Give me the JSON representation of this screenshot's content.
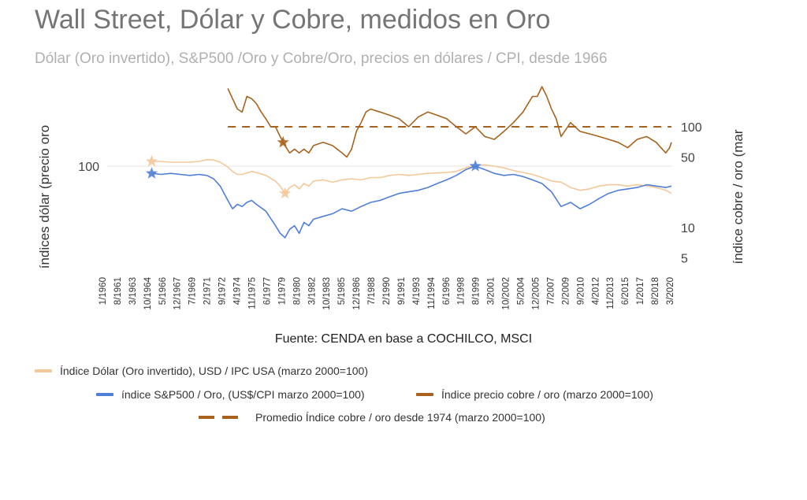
{
  "title": "Wall Street, Dólar y Cobre, medidos en Oro",
  "subtitle": "Dólar (Oro invertido),  S&P500 /Oro y Cobre/Oro, precios en dólares / CPI, desde 1966",
  "source": "Fuente: CENDA en base a COCHILCO, MSCI",
  "legend": [
    {
      "label": "Índice Dólar (Oro invertido), USD / IPC USA (marzo 2000=100)",
      "color": "#f4c89b",
      "style": "solid"
    },
    {
      "label": "índice S&P500 / Oro, (US$/CPI marzo 2000=100)",
      "color": "#4f7fd9",
      "style": "solid"
    },
    {
      "label": "Índice precio cobre / oro (marzo 2000=100)",
      "color": "#a8621d",
      "style": "solid"
    },
    {
      "label": "Promedio Índice cobre / oro desde 1974 (marzo 2000=100)",
      "color": "#a8621d",
      "style": "dashed"
    }
  ],
  "chart_data": {
    "type": "line",
    "title": "Wall Street, Dólar y Cobre, medidos en Oro",
    "ylabel_left": "índices dólar (precio oro",
    "ylabel_right": "índice cobre / oro (mar",
    "y_left_scale": "log",
    "y_right_scale": "log",
    "y_left_ticks": [
      100
    ],
    "y_right_ticks": [
      5,
      10,
      50,
      100
    ],
    "x_tick_labels": [
      "1/1960",
      "8/1961",
      "3/1963",
      "10/1964",
      "5/1966",
      "12/1967",
      "7/1969",
      "2/1971",
      "9/1972",
      "4/1974",
      "11/1975",
      "6/1977",
      "1/1979",
      "8/1980",
      "3/1982",
      "10/1983",
      "5/1985",
      "12/1986",
      "7/1988",
      "2/1990",
      "9/1991",
      "4/1993",
      "11/1994",
      "6/1996",
      "1/1998",
      "8/1999",
      "3/2001",
      "10/2002",
      "5/2004",
      "12/2005",
      "7/2007",
      "2/2009",
      "9/2010",
      "4/2012",
      "11/2013",
      "6/2015",
      "1/2017",
      "8/2018",
      "3/2020"
    ],
    "legend_position": "bottom",
    "grid": false,
    "series": [
      {
        "name": "Índice Dólar (Oro invertido), USD / IPC USA (marzo 2000=100)",
        "axis": "left",
        "color": "#f4c89b",
        "x": [
          1966.0,
          1967.0,
          1968.0,
          1969.0,
          1970.0,
          1971.0,
          1971.8,
          1972.5,
          1973.2,
          1974.0,
          1974.5,
          1975.0,
          1975.5,
          1976.0,
          1976.5,
          1977.0,
          1978.0,
          1979.0,
          1979.5,
          1980.0,
          1980.5,
          1981.0,
          1981.5,
          1982.0,
          1982.5,
          1983.0,
          1984.0,
          1985.0,
          1986.0,
          1987.0,
          1988.0,
          1989.0,
          1990.0,
          1991.0,
          1992.0,
          1993.0,
          1994.0,
          1995.0,
          1996.0,
          1997.0,
          1998.0,
          1999.0,
          2000.0,
          2001.0,
          2002.0,
          2003.0,
          2004.0,
          2005.0,
          2006.0,
          2007.0,
          2008.0,
          2009.0,
          2010.0,
          2011.0,
          2012.0,
          2013.0,
          2014.0,
          2015.0,
          2016.0,
          2017.0,
          2018.0,
          2019.0,
          2020.0,
          2020.6
        ],
        "values": [
          112,
          112,
          110,
          110,
          110,
          112,
          117,
          116,
          110,
          98,
          88,
          82,
          82,
          85,
          88,
          86,
          80,
          70,
          62,
          52,
          60,
          64,
          58,
          66,
          62,
          70,
          72,
          68,
          72,
          74,
          72,
          76,
          76,
          80,
          82,
          80,
          82,
          84,
          85,
          86,
          88,
          96,
          102,
          103,
          100,
          96,
          90,
          86,
          82,
          76,
          70,
          68,
          60,
          56,
          58,
          62,
          64,
          64,
          62,
          64,
          62,
          60,
          56,
          52
        ],
        "markers": [
          {
            "x": 1966.0,
            "y": 112
          },
          {
            "x": 1980.0,
            "y": 52
          }
        ]
      },
      {
        "name": "índice S&P500 / Oro, (US$/CPI marzo 2000=100)",
        "axis": "left",
        "color": "#4f7fd9",
        "x": [
          1966.0,
          1967.0,
          1968.0,
          1969.0,
          1970.0,
          1971.0,
          1971.8,
          1972.5,
          1973.2,
          1974.0,
          1974.5,
          1975.0,
          1975.5,
          1976.0,
          1976.5,
          1977.0,
          1978.0,
          1979.0,
          1979.5,
          1980.0,
          1980.5,
          1981.0,
          1981.5,
          1982.0,
          1982.5,
          1983.0,
          1984.0,
          1985.0,
          1986.0,
          1987.0,
          1988.0,
          1989.0,
          1990.0,
          1991.0,
          1992.0,
          1993.0,
          1994.0,
          1995.0,
          1996.0,
          1997.0,
          1998.0,
          1999.0,
          2000.0,
          2001.0,
          2002.0,
          2003.0,
          2004.0,
          2005.0,
          2006.0,
          2007.0,
          2008.0,
          2009.0,
          2010.0,
          2011.0,
          2012.0,
          2013.0,
          2014.0,
          2015.0,
          2016.0,
          2017.0,
          2018.0,
          2019.0,
          2020.0,
          2020.6
        ],
        "values": [
          84,
          82,
          84,
          82,
          80,
          82,
          80,
          74,
          62,
          44,
          36,
          40,
          38,
          42,
          44,
          40,
          34,
          24,
          20,
          18,
          22,
          24,
          20,
          26,
          24,
          28,
          30,
          32,
          36,
          34,
          38,
          42,
          44,
          48,
          52,
          54,
          56,
          60,
          66,
          72,
          80,
          92,
          100,
          92,
          84,
          80,
          82,
          78,
          72,
          66,
          54,
          38,
          42,
          36,
          40,
          46,
          52,
          56,
          58,
          60,
          64,
          62,
          60,
          62
        ],
        "markers": [
          {
            "x": 1966.0,
            "y": 84
          },
          {
            "x": 2000.0,
            "y": 100
          }
        ]
      },
      {
        "name": "Índice precio cobre / oro (marzo 2000=100)",
        "axis": "right",
        "color": "#a8621d",
        "x": [
          1974.0,
          1974.5,
          1975.0,
          1975.5,
          1976.0,
          1976.5,
          1977.0,
          1977.5,
          1978.0,
          1978.5,
          1979.0,
          1979.5,
          1980.0,
          1980.5,
          1981.0,
          1981.5,
          1982.0,
          1982.5,
          1983.0,
          1984.0,
          1985.0,
          1986.0,
          1986.5,
          1987.0,
          1987.5,
          1988.0,
          1988.5,
          1989.0,
          1990.0,
          1991.0,
          1992.0,
          1993.0,
          1994.0,
          1995.0,
          1996.0,
          1997.0,
          1998.0,
          1999.0,
          2000.0,
          2001.0,
          2002.0,
          2003.0,
          2004.0,
          2005.0,
          2006.0,
          2006.5,
          2007.0,
          2007.5,
          2008.0,
          2008.5,
          2009.0,
          2010.0,
          2011.0,
          2012.0,
          2013.0,
          2014.0,
          2015.0,
          2016.0,
          2017.0,
          2018.0,
          2019.0,
          2019.5,
          2020.0,
          2020.4,
          2020.6
        ],
        "values": [
          240,
          190,
          150,
          140,
          200,
          190,
          170,
          140,
          120,
          100,
          100,
          80,
          65,
          55,
          60,
          55,
          60,
          55,
          65,
          70,
          65,
          55,
          50,
          60,
          90,
          110,
          140,
          150,
          140,
          130,
          120,
          100,
          125,
          140,
          130,
          120,
          100,
          85,
          100,
          80,
          75,
          90,
          110,
          140,
          200,
          200,
          250,
          200,
          150,
          120,
          80,
          110,
          90,
          85,
          80,
          75,
          70,
          62,
          75,
          80,
          70,
          62,
          55,
          62,
          70
        ],
        "markers": [
          {
            "x": 1979.8,
            "y": 70
          }
        ]
      },
      {
        "name": "Promedio Índice cobre / oro desde 1974 (marzo 2000=100)",
        "axis": "right",
        "color": "#a8621d",
        "style": "dashed",
        "x": [
          1974.0,
          2020.6
        ],
        "values": [
          100,
          100
        ]
      }
    ]
  }
}
